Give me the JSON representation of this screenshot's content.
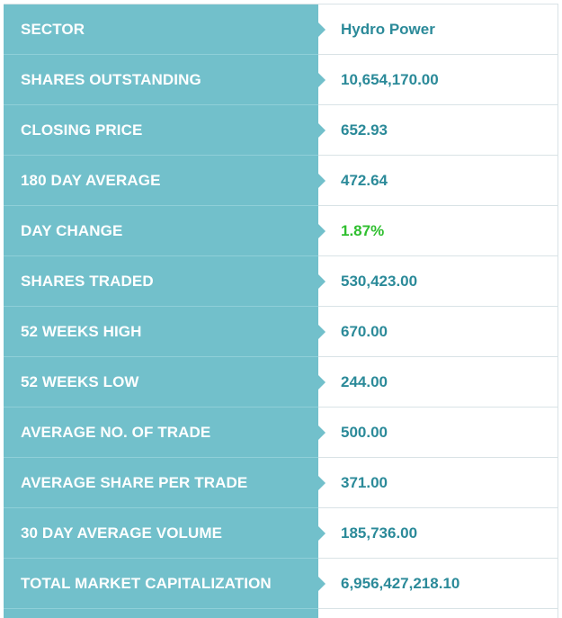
{
  "rows": [
    {
      "label": "SECTOR",
      "value": "Hydro Power"
    },
    {
      "label": "SHARES OUTSTANDING",
      "value": "10,654,170.00"
    },
    {
      "label": "CLOSING PRICE",
      "value": "652.93"
    },
    {
      "label": "180 DAY AVERAGE",
      "value": "472.64"
    },
    {
      "label": "DAY CHANGE",
      "value": "1.87%"
    },
    {
      "label": "SHARES TRADED",
      "value": "530,423.00"
    },
    {
      "label": "52 WEEKS HIGH",
      "value": "670.00"
    },
    {
      "label": "52 WEEKS LOW",
      "value": "244.00"
    },
    {
      "label": "AVERAGE NO. OF TRADE",
      "value": "500.00"
    },
    {
      "label": "AVERAGE SHARE PER TRADE",
      "value": "371.00"
    },
    {
      "label": "30 DAY AVERAGE VOLUME",
      "value": "185,736.00"
    },
    {
      "label": "TOTAL MARKET CAPITALIZATION",
      "value": "6,956,427,218.10"
    }
  ],
  "colors": {
    "label_bg": "#72c0cb",
    "value_text": "#2b8a99",
    "positive_change": "#2fbf2f"
  }
}
